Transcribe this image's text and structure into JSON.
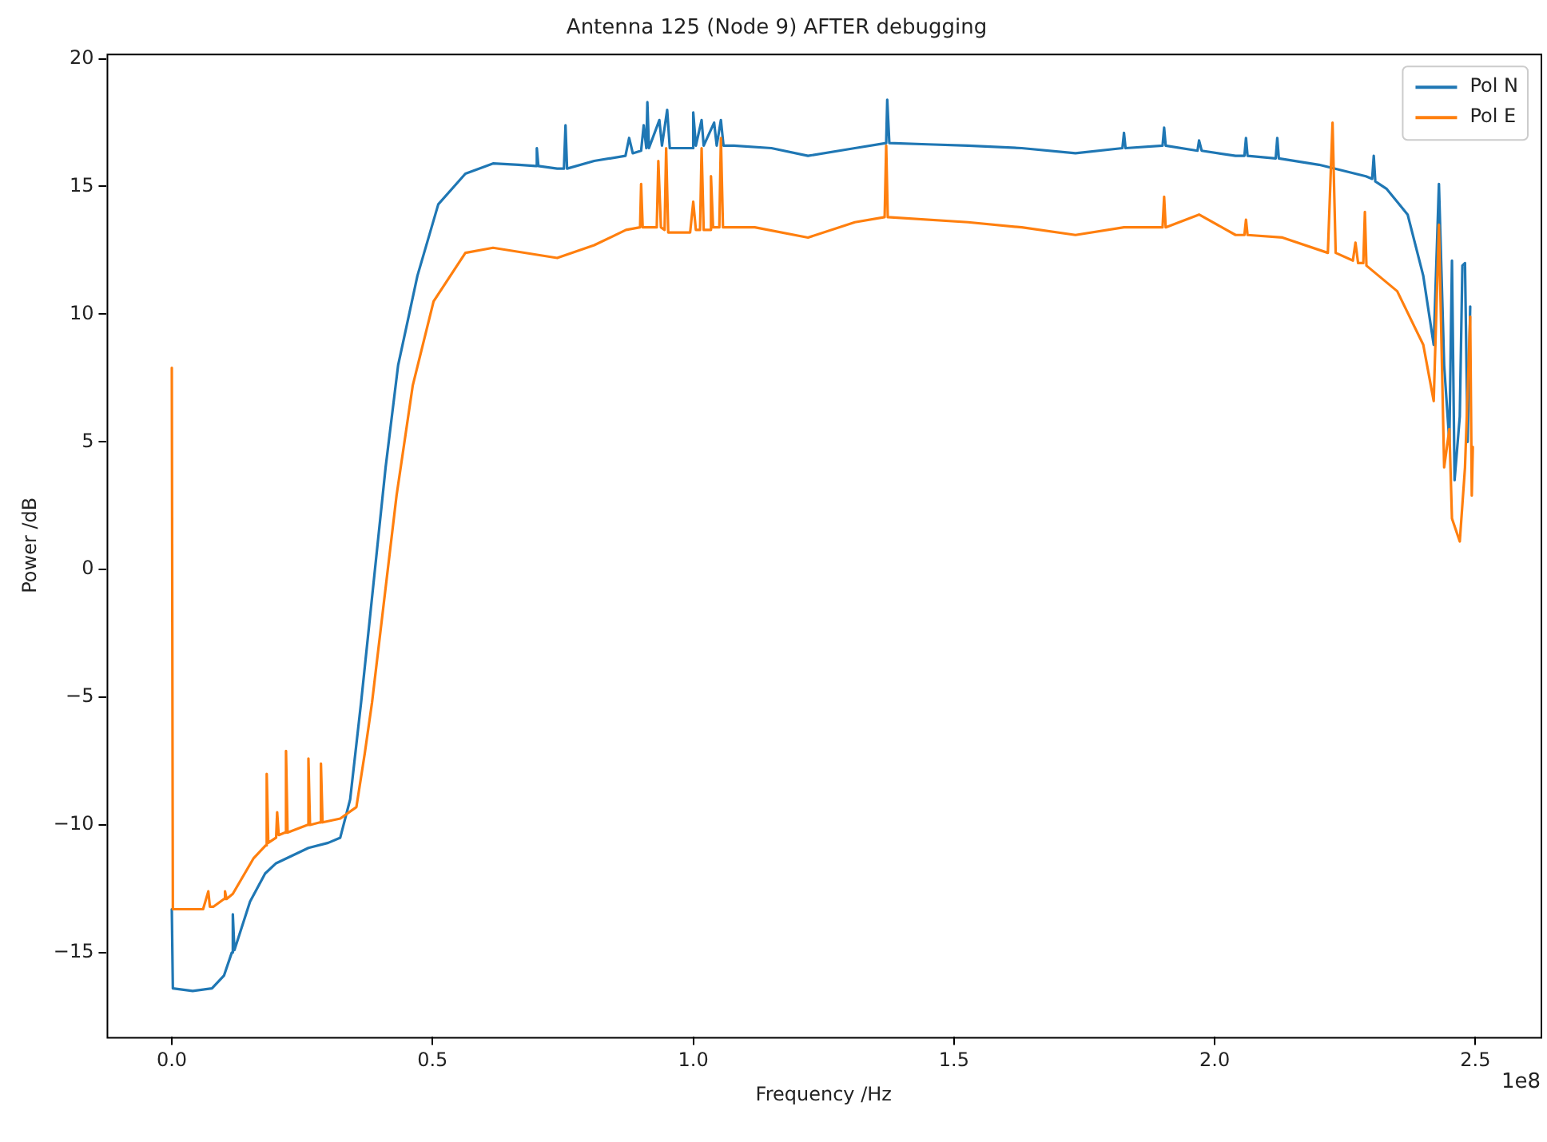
{
  "chart_data": {
    "type": "line",
    "title": "Antenna 125 (Node 9) AFTER debugging",
    "xlabel": "Frequency /Hz",
    "ylabel": "Power /dB",
    "annotations": [
      "1e8"
    ],
    "xlim": [
      -0.125,
      2.625
    ],
    "xticks": [
      {
        "value": 0,
        "label": "0.0"
      },
      {
        "value": 0.5,
        "label": "0.5"
      },
      {
        "value": 1,
        "label": "1.0"
      },
      {
        "value": 1.5,
        "label": "1.5"
      },
      {
        "value": 2,
        "label": "2.0"
      },
      {
        "value": 2.5,
        "label": "2.5"
      }
    ],
    "ylim": [
      -18.3,
      20.2
    ],
    "yticks": [
      -15,
      -10,
      -5,
      0,
      5,
      10,
      15,
      20
    ],
    "legend": "top right",
    "marker": "none",
    "line_style": "solid",
    "series": [
      {
        "name": "Pol N",
        "color": "#1f77b4",
        "x": [
          0,
          0.002,
          0.04,
          0.077,
          0.1,
          0.115,
          0.117,
          0.12,
          0.15,
          0.179,
          0.2,
          0.262,
          0.3,
          0.323,
          0.342,
          0.363,
          0.41,
          0.434,
          0.471,
          0.511,
          0.563,
          0.616,
          0.665,
          0.698,
          0.7,
          0.703,
          0.739,
          0.752,
          0.755,
          0.758,
          0.81,
          0.87,
          0.877,
          0.884,
          0.9,
          0.905,
          0.91,
          0.912,
          0.915,
          0.935,
          0.94,
          0.95,
          0.955,
          0.998,
          1.0,
          1.005,
          1.016,
          1.02,
          1.04,
          1.045,
          1.053,
          1.058,
          1.078,
          1.15,
          1.22,
          1.31,
          1.37,
          1.372,
          1.376,
          1.45,
          1.527,
          1.63,
          1.733,
          1.823,
          1.826,
          1.829,
          1.9,
          1.903,
          1.906,
          1.967,
          1.97,
          1.975,
          2.04,
          2.057,
          2.06,
          2.063,
          2.117,
          2.12,
          2.123,
          2.2,
          2.29,
          2.302,
          2.305,
          2.308,
          2.33,
          2.37,
          2.4,
          2.42,
          2.43,
          2.44,
          2.45,
          2.455,
          2.46,
          2.47,
          2.475,
          2.48,
          2.485,
          2.49
        ],
        "values": [
          -13.3,
          -16.4,
          -16.5,
          -16.4,
          -15.9,
          -15.0,
          -13.5,
          -14.9,
          -13.0,
          -11.9,
          -11.5,
          -10.9,
          -10.7,
          -10.5,
          -9.0,
          -5.2,
          4.0,
          8.0,
          11.5,
          14.3,
          15.5,
          15.9,
          15.85,
          15.8,
          16.5,
          15.8,
          15.7,
          15.7,
          17.4,
          15.7,
          16.0,
          16.2,
          16.9,
          16.3,
          16.4,
          17.4,
          16.5,
          18.3,
          16.5,
          17.6,
          16.6,
          18.0,
          16.5,
          16.5,
          17.9,
          16.6,
          17.6,
          16.6,
          17.5,
          16.6,
          17.6,
          16.6,
          16.6,
          16.5,
          16.2,
          16.5,
          16.7,
          18.4,
          16.7,
          16.65,
          16.6,
          16.5,
          16.3,
          16.5,
          17.1,
          16.5,
          16.6,
          17.3,
          16.6,
          16.4,
          16.8,
          16.4,
          16.2,
          16.2,
          16.9,
          16.2,
          16.1,
          16.9,
          16.1,
          15.85,
          15.4,
          15.3,
          16.2,
          15.2,
          14.9,
          13.9,
          11.5,
          8.8,
          15.1,
          8.0,
          5.0,
          12.1,
          3.5,
          6.0,
          11.9,
          12.0,
          5.0,
          10.3
        ]
      },
      {
        "name": "Pol E",
        "color": "#ff7f0e",
        "x": [
          0,
          0.002,
          0.06,
          0.07,
          0.073,
          0.08,
          0.1,
          0.102,
          0.105,
          0.117,
          0.157,
          0.18,
          0.182,
          0.185,
          0.2,
          0.202,
          0.205,
          0.217,
          0.219,
          0.222,
          0.26,
          0.262,
          0.265,
          0.284,
          0.286,
          0.289,
          0.323,
          0.354,
          0.37,
          0.384,
          0.431,
          0.462,
          0.502,
          0.563,
          0.616,
          0.739,
          0.81,
          0.871,
          0.898,
          0.9,
          0.903,
          0.93,
          0.933,
          0.938,
          0.945,
          0.948,
          0.952,
          0.994,
          1.0,
          1.005,
          1.013,
          1.016,
          1.02,
          1.032,
          1.034,
          1.038,
          1.05,
          1.053,
          1.057,
          1.118,
          1.22,
          1.31,
          1.367,
          1.37,
          1.373,
          1.527,
          1.63,
          1.733,
          1.826,
          1.9,
          1.903,
          1.906,
          1.97,
          2.04,
          2.057,
          2.06,
          2.063,
          2.13,
          2.217,
          2.226,
          2.232,
          2.265,
          2.27,
          2.275,
          2.285,
          2.288,
          2.291,
          2.35,
          2.4,
          2.42,
          2.43,
          2.44,
          2.45,
          2.455,
          2.47,
          2.48,
          2.49,
          2.493,
          2.495
        ],
        "values": [
          7.9,
          -13.3,
          -13.3,
          -12.6,
          -13.2,
          -13.2,
          -12.9,
          -12.6,
          -12.9,
          -12.7,
          -11.3,
          -10.8,
          -8.0,
          -10.7,
          -10.5,
          -9.5,
          -10.4,
          -10.3,
          -7.1,
          -10.3,
          -10.0,
          -7.4,
          -10.0,
          -9.9,
          -7.6,
          -9.9,
          -9.75,
          -9.3,
          -7.2,
          -5.2,
          2.9,
          7.2,
          10.5,
          12.4,
          12.6,
          12.2,
          12.7,
          13.3,
          13.4,
          15.1,
          13.4,
          13.4,
          16.0,
          13.4,
          13.3,
          16.5,
          13.2,
          13.2,
          14.4,
          13.3,
          13.3,
          16.5,
          13.3,
          13.3,
          15.4,
          13.4,
          13.4,
          16.9,
          13.4,
          13.4,
          13.0,
          13.6,
          13.8,
          16.6,
          13.8,
          13.6,
          13.4,
          13.1,
          13.4,
          13.4,
          14.6,
          13.4,
          13.9,
          13.1,
          13.1,
          13.7,
          13.1,
          13.0,
          12.4,
          17.5,
          12.4,
          12.1,
          12.8,
          12.0,
          12.0,
          14.0,
          11.9,
          10.9,
          8.8,
          6.6,
          13.5,
          4.0,
          5.5,
          2.0,
          1.1,
          4.0,
          9.9,
          2.9,
          4.8
        ]
      }
    ]
  }
}
